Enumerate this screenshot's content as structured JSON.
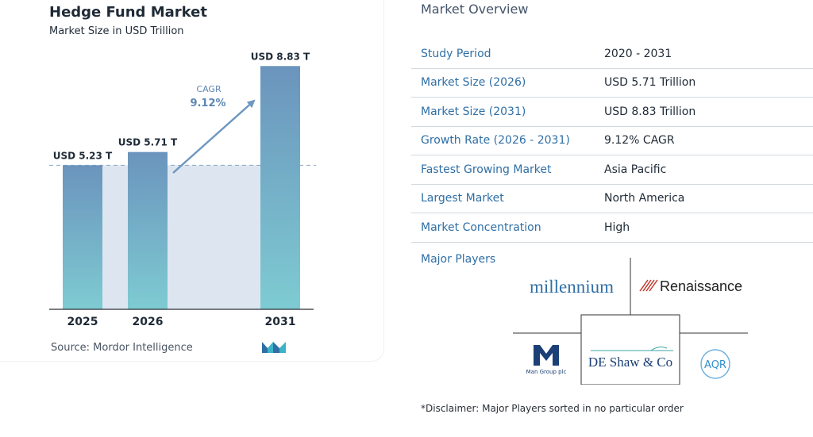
{
  "chart_data": {
    "type": "bar",
    "title": "Hedge Fund Market",
    "subtitle": "Market Size in USD Trillion",
    "categories": [
      "2025",
      "2026",
      "2031"
    ],
    "values": [
      5.23,
      5.71,
      8.83
    ],
    "value_labels": [
      "USD 5.23 T",
      "USD 5.71 T",
      "USD 8.83 T"
    ],
    "cagr_label": "CAGR",
    "cagr_value": "9.12%",
    "ylim": [
      0,
      9.5
    ],
    "grid": false,
    "source": "Source:  Mordor Intelligence",
    "colors": {
      "bar_top": "#6b94bd",
      "bar_bottom": "#7ecbd2",
      "band": "#dde6f0",
      "arrow": "#6f97c1",
      "cagr_text": "#5b87b5"
    }
  },
  "overview": {
    "title": "Market Overview",
    "rows": [
      {
        "label": "Study Period",
        "value": "2020 - 2031"
      },
      {
        "label": "Market Size (2026)",
        "value": "USD 5.71 Trillion"
      },
      {
        "label": "Market Size (2031)",
        "value": "USD 8.83 Trillion"
      },
      {
        "label": "Growth Rate (2026 - 2031)",
        "value": "9.12% CAGR"
      },
      {
        "label": "Fastest Growing Market",
        "value": "Asia Pacific"
      },
      {
        "label": "Largest Market",
        "value": "North America"
      },
      {
        "label": "Market Concentration",
        "value": "High"
      }
    ]
  },
  "players": {
    "label": "Major Players",
    "millennium": "millennium",
    "renaissance": "Renaissance",
    "man_group_sub": "Man Group plc",
    "deshaw": "DE Shaw & Co",
    "aqr": "AQR"
  },
  "disclaimer": "*Disclaimer: Major Players sorted in no particular order"
}
